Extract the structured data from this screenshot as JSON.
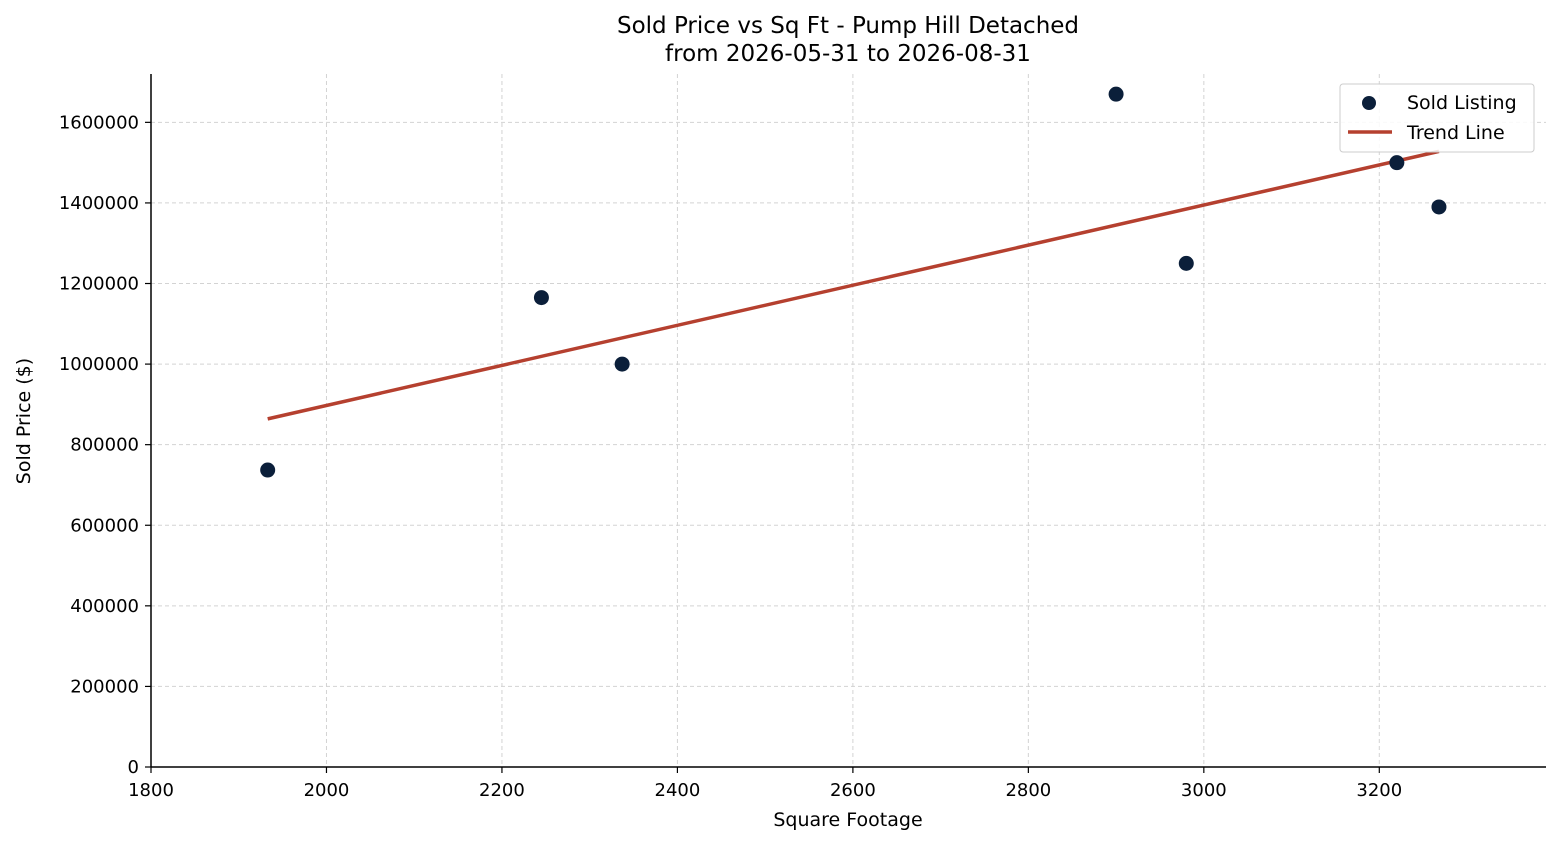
{
  "chart_data": {
    "type": "scatter",
    "title": "Sold Price vs Sq Ft - Pump Hill Detached",
    "subtitle": "from 2026-05-31 to 2026-08-31",
    "xlabel": "Square Footage",
    "ylabel": "Sold Price ($)",
    "xlim": [
      1800,
      3390
    ],
    "ylim": [
      0,
      1720000
    ],
    "xticks": [
      1800,
      2000,
      2200,
      2400,
      2600,
      2800,
      3000,
      3200
    ],
    "yticks": [
      0,
      200000,
      400000,
      600000,
      800000,
      1000000,
      1200000,
      1400000,
      1600000
    ],
    "grid": true,
    "legend_position": "top-right",
    "series": [
      {
        "name": "Sold Listing",
        "kind": "scatter",
        "color": "#0b1f3a",
        "points": [
          {
            "x": 1933,
            "y": 737000
          },
          {
            "x": 2245,
            "y": 1165000
          },
          {
            "x": 2337,
            "y": 1000000
          },
          {
            "x": 2900,
            "y": 1670000
          },
          {
            "x": 2980,
            "y": 1250000
          },
          {
            "x": 3220,
            "y": 1500000
          },
          {
            "x": 3268,
            "y": 1390000
          }
        ]
      },
      {
        "name": "Trend Line",
        "kind": "line",
        "color": "#b5402f",
        "points": [
          {
            "x": 1933,
            "y": 864000
          },
          {
            "x": 3268,
            "y": 1528000
          }
        ]
      }
    ]
  }
}
